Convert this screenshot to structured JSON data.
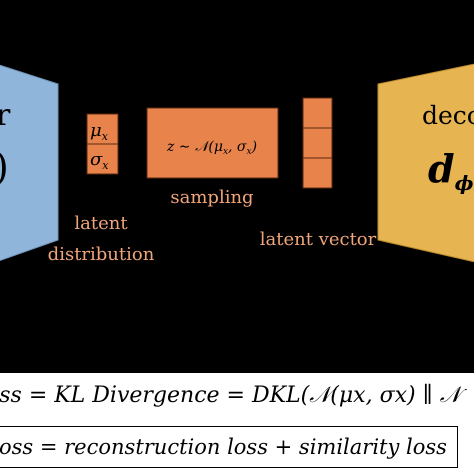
{
  "encoder": {
    "label_fragment": "r",
    "symbol_fragment": ")"
  },
  "latent_distribution": {
    "mu": "μ",
    "mu_sub": "x",
    "sigma": "σ",
    "sigma_sub": "x",
    "label_line1": "latent",
    "label_line2": "distribution"
  },
  "sampling": {
    "formula": "z ∼ 𝒩(μ",
    "formula_sub1": "x",
    "formula_mid": ", σ",
    "formula_sub2": "x",
    "formula_end": ")",
    "label": "sampling"
  },
  "latent_vector": {
    "label": "latent vector"
  },
  "decoder": {
    "label_fragment": "deco",
    "symbol": "d",
    "symbol_sub": "ϕ",
    "symbol_paren": "("
  },
  "formulas": {
    "kl": "oss = KL Divergence = D_KL(𝒩(μ_x, σ_x) ∥ 𝒩",
    "kl_display": "oss = KL Divergence = DKL(𝒩(μx, σx) ∥ 𝒩",
    "total": "oss = reconstruction loss + similarity loss"
  },
  "colors": {
    "background": "#000000",
    "encoder_fill": "#8fb5da",
    "latent_fill": "#e8834c",
    "decoder_fill": "#e6b552",
    "label_orange": "#f0a57a"
  }
}
